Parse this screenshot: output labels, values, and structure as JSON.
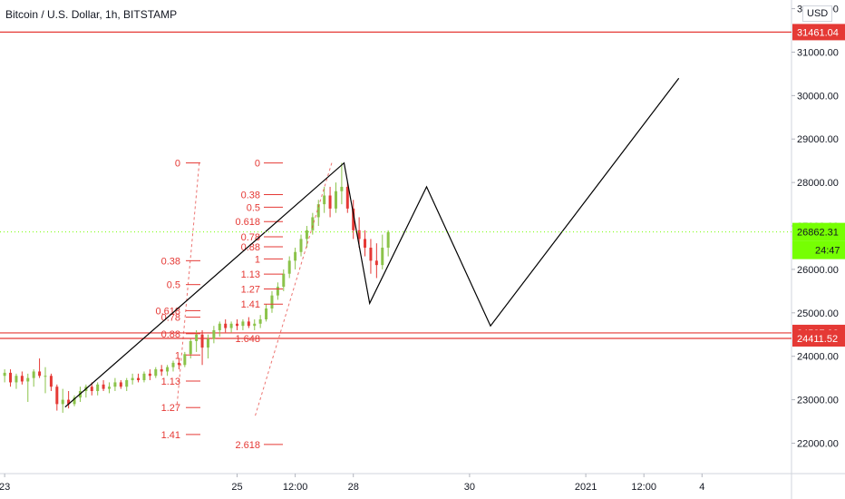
{
  "header": {
    "title": "Bitcoin / U.S. Dollar, 1h, BITSTAMP",
    "currency": "USD"
  },
  "colors": {
    "up": "#8bc34a",
    "down": "#e53935",
    "line": "#000000",
    "fib": "#e53935",
    "price_tag": "#76ff03",
    "level_tag": "#e53935",
    "axis_bg": "#ffffff"
  },
  "chart_data": {
    "type": "candlestick",
    "symbol": "Bitcoin / U.S. Dollar",
    "interval": "1h",
    "exchange": "BITSTAMP",
    "y_ticks": [
      "32000.00",
      "31000.00",
      "30000.00",
      "29000.00",
      "28000.00",
      "27000.00",
      "26000.00",
      "25000.00",
      "24000.00",
      "23000.00",
      "22000.00"
    ],
    "y_tick_values": [
      32000,
      31000,
      30000,
      29000,
      28000,
      27000,
      26000,
      25000,
      24000,
      23000,
      22000
    ],
    "ylim": [
      21300,
      32200
    ],
    "x_ticks": [
      "23",
      "25",
      "12:00",
      "28",
      "30",
      "2021",
      "12:00",
      "4"
    ],
    "x_tick_days": [
      0,
      2,
      2.5,
      3,
      4,
      5,
      5.5,
      6
    ],
    "xlim": [
      -0.04,
      6.77
    ],
    "horizontal_levels": [
      31461.04,
      24537.93,
      24411.52
    ],
    "level_labels": [
      "31461.04",
      "24537.93",
      "24411.52"
    ],
    "current_price": "26862.31",
    "countdown": "24:47",
    "fib_left": {
      "levels": [
        "0",
        "0.38",
        "0.5",
        "0.618",
        "0.78",
        "0.88",
        "1",
        "1.13",
        "1.27",
        "1.41"
      ],
      "values": [
        28450,
        26200,
        25650,
        25050,
        24900,
        24520,
        24030,
        23430,
        22820,
        22200
      ]
    },
    "fib_right": {
      "levels": [
        "0",
        "0.38",
        "0.5",
        "0.618",
        "0.78",
        "0.88",
        "1",
        "1.13",
        "1.27",
        "1.41",
        "1.648",
        "2.618"
      ],
      "values": [
        28450,
        27720,
        27430,
        27100,
        26750,
        26520,
        26240,
        25890,
        25550,
        25200,
        24410,
        21970
      ]
    },
    "projection_path": [
      {
        "day": 0.52,
        "price": 22830
      },
      {
        "day": 2.92,
        "price": 28450
      },
      {
        "day": 3.14,
        "price": 25220
      },
      {
        "day": 3.63,
        "price": 27900
      },
      {
        "day": 4.18,
        "price": 24700
      },
      {
        "day": 5.8,
        "price": 30400
      }
    ],
    "candles": [
      {
        "day": 0.0,
        "o": 23550,
        "h": 23700,
        "l": 23400,
        "c": 23620
      },
      {
        "day": 0.05,
        "o": 23620,
        "h": 23700,
        "l": 23300,
        "c": 23400
      },
      {
        "day": 0.1,
        "o": 23400,
        "h": 23600,
        "l": 23250,
        "c": 23550
      },
      {
        "day": 0.15,
        "o": 23550,
        "h": 23650,
        "l": 23350,
        "c": 23420
      },
      {
        "day": 0.2,
        "o": 23420,
        "h": 23600,
        "l": 22950,
        "c": 23500
      },
      {
        "day": 0.25,
        "o": 23500,
        "h": 23700,
        "l": 23300,
        "c": 23650
      },
      {
        "day": 0.3,
        "o": 23650,
        "h": 23950,
        "l": 23500,
        "c": 23550
      },
      {
        "day": 0.35,
        "o": 23550,
        "h": 23750,
        "l": 23150,
        "c": 23550
      },
      {
        "day": 0.4,
        "o": 23550,
        "h": 23600,
        "l": 23200,
        "c": 23300
      },
      {
        "day": 0.45,
        "o": 23300,
        "h": 23350,
        "l": 22750,
        "c": 22900
      },
      {
        "day": 0.5,
        "o": 22900,
        "h": 23250,
        "l": 22700,
        "c": 23000
      },
      {
        "day": 0.55,
        "o": 23000,
        "h": 23200,
        "l": 22800,
        "c": 22900
      },
      {
        "day": 0.6,
        "o": 22900,
        "h": 23100,
        "l": 22850,
        "c": 23050
      },
      {
        "day": 0.65,
        "o": 23050,
        "h": 23300,
        "l": 22950,
        "c": 23200
      },
      {
        "day": 0.7,
        "o": 23200,
        "h": 23350,
        "l": 23050,
        "c": 23300
      },
      {
        "day": 0.75,
        "o": 23300,
        "h": 23400,
        "l": 23100,
        "c": 23200
      },
      {
        "day": 0.8,
        "o": 23200,
        "h": 23400,
        "l": 23100,
        "c": 23350
      },
      {
        "day": 0.85,
        "o": 23350,
        "h": 23450,
        "l": 23200,
        "c": 23250
      },
      {
        "day": 0.9,
        "o": 23250,
        "h": 23400,
        "l": 23150,
        "c": 23300
      },
      {
        "day": 0.95,
        "o": 23300,
        "h": 23500,
        "l": 23200,
        "c": 23400
      },
      {
        "day": 1.0,
        "o": 23400,
        "h": 23450,
        "l": 23250,
        "c": 23300
      },
      {
        "day": 1.05,
        "o": 23300,
        "h": 23500,
        "l": 23200,
        "c": 23450
      },
      {
        "day": 1.1,
        "o": 23450,
        "h": 23600,
        "l": 23350,
        "c": 23500
      },
      {
        "day": 1.15,
        "o": 23500,
        "h": 23600,
        "l": 23400,
        "c": 23450
      },
      {
        "day": 1.2,
        "o": 23450,
        "h": 23650,
        "l": 23400,
        "c": 23600
      },
      {
        "day": 1.25,
        "o": 23600,
        "h": 23700,
        "l": 23450,
        "c": 23550
      },
      {
        "day": 1.3,
        "o": 23550,
        "h": 23750,
        "l": 23500,
        "c": 23700
      },
      {
        "day": 1.35,
        "o": 23700,
        "h": 23800,
        "l": 23550,
        "c": 23650
      },
      {
        "day": 1.4,
        "o": 23650,
        "h": 23800,
        "l": 23550,
        "c": 23750
      },
      {
        "day": 1.45,
        "o": 23750,
        "h": 23900,
        "l": 23650,
        "c": 23850
      },
      {
        "day": 1.5,
        "o": 23850,
        "h": 23950,
        "l": 23700,
        "c": 23800
      },
      {
        "day": 1.55,
        "o": 23800,
        "h": 24100,
        "l": 23750,
        "c": 24050
      },
      {
        "day": 1.6,
        "o": 24050,
        "h": 24400,
        "l": 23950,
        "c": 24350
      },
      {
        "day": 1.65,
        "o": 24350,
        "h": 24600,
        "l": 24100,
        "c": 24500
      },
      {
        "day": 1.7,
        "o": 24500,
        "h": 24600,
        "l": 23800,
        "c": 24200
      },
      {
        "day": 1.75,
        "o": 24200,
        "h": 24500,
        "l": 23950,
        "c": 24400
      },
      {
        "day": 1.8,
        "o": 24400,
        "h": 24700,
        "l": 24300,
        "c": 24600
      },
      {
        "day": 1.85,
        "o": 24600,
        "h": 24800,
        "l": 24450,
        "c": 24750
      },
      {
        "day": 1.9,
        "o": 24750,
        "h": 24850,
        "l": 24550,
        "c": 24650
      },
      {
        "day": 1.95,
        "o": 24650,
        "h": 24800,
        "l": 24550,
        "c": 24750
      },
      {
        "day": 2.0,
        "o": 24750,
        "h": 24850,
        "l": 24600,
        "c": 24700
      },
      {
        "day": 2.05,
        "o": 24700,
        "h": 24850,
        "l": 24600,
        "c": 24800
      },
      {
        "day": 2.1,
        "o": 24800,
        "h": 24900,
        "l": 24650,
        "c": 24700
      },
      {
        "day": 2.15,
        "o": 24700,
        "h": 24850,
        "l": 24600,
        "c": 24750
      },
      {
        "day": 2.2,
        "o": 24750,
        "h": 24950,
        "l": 24650,
        "c": 24850
      },
      {
        "day": 2.25,
        "o": 24850,
        "h": 25200,
        "l": 24800,
        "c": 25100
      },
      {
        "day": 2.3,
        "o": 25100,
        "h": 25500,
        "l": 25000,
        "c": 25400
      },
      {
        "day": 2.35,
        "o": 25400,
        "h": 25700,
        "l": 25300,
        "c": 25600
      },
      {
        "day": 2.4,
        "o": 25600,
        "h": 26000,
        "l": 25500,
        "c": 25900
      },
      {
        "day": 2.45,
        "o": 25900,
        "h": 26300,
        "l": 25800,
        "c": 26200
      },
      {
        "day": 2.5,
        "o": 26200,
        "h": 26500,
        "l": 26000,
        "c": 26400
      },
      {
        "day": 2.55,
        "o": 26400,
        "h": 26800,
        "l": 26300,
        "c": 26700
      },
      {
        "day": 2.6,
        "o": 26700,
        "h": 27000,
        "l": 26500,
        "c": 26900
      },
      {
        "day": 2.65,
        "o": 26900,
        "h": 27300,
        "l": 26800,
        "c": 27200
      },
      {
        "day": 2.7,
        "o": 27200,
        "h": 27600,
        "l": 27000,
        "c": 27500
      },
      {
        "day": 2.75,
        "o": 27500,
        "h": 27900,
        "l": 27300,
        "c": 27700
      },
      {
        "day": 2.8,
        "o": 27700,
        "h": 27900,
        "l": 27200,
        "c": 27400
      },
      {
        "day": 2.85,
        "o": 27400,
        "h": 28000,
        "l": 27300,
        "c": 27800
      },
      {
        "day": 2.9,
        "o": 27800,
        "h": 28450,
        "l": 27500,
        "c": 27900
      },
      {
        "day": 2.95,
        "o": 27900,
        "h": 28000,
        "l": 27300,
        "c": 27400
      },
      {
        "day": 3.0,
        "o": 27400,
        "h": 27600,
        "l": 26700,
        "c": 26900
      },
      {
        "day": 3.05,
        "o": 26900,
        "h": 27200,
        "l": 26500,
        "c": 26700
      },
      {
        "day": 3.1,
        "o": 26700,
        "h": 26900,
        "l": 26300,
        "c": 26500
      },
      {
        "day": 3.15,
        "o": 26500,
        "h": 26700,
        "l": 25900,
        "c": 26200
      },
      {
        "day": 3.2,
        "o": 26200,
        "h": 26600,
        "l": 25800,
        "c": 26100
      },
      {
        "day": 3.25,
        "o": 26100,
        "h": 26800,
        "l": 26000,
        "c": 26500
      },
      {
        "day": 3.3,
        "o": 26500,
        "h": 26900,
        "l": 26300,
        "c": 26860
      }
    ]
  }
}
